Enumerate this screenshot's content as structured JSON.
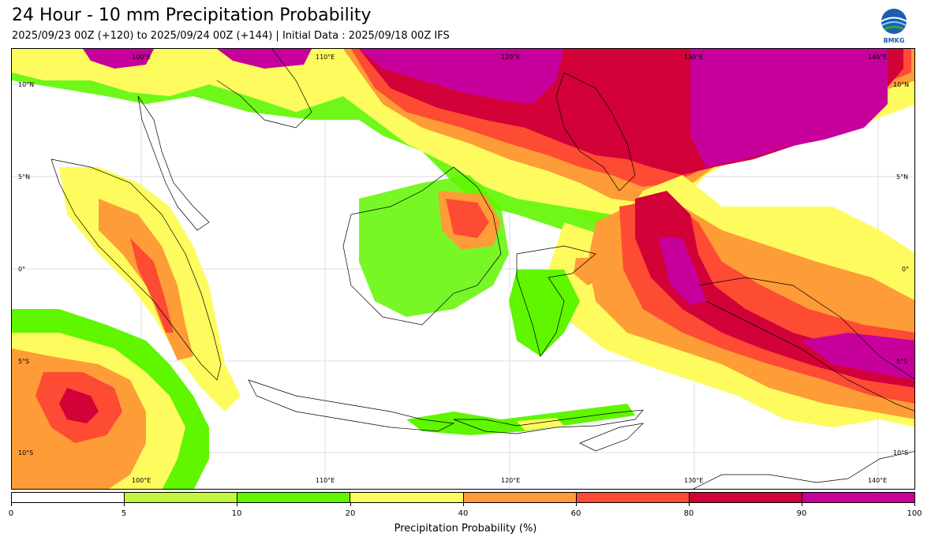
{
  "header": {
    "title": "24 Hour - 10 mm Precipitation Probability",
    "subtitle": "2025/09/23 00Z (+120) to 2025/09/24 00Z (+144) | Initial Data : 2025/09/18 00Z IFS",
    "logo_text": "BMKG"
  },
  "map": {
    "lon_labels": [
      "100°E",
      "110°E",
      "120°E",
      "130°E",
      "140°E"
    ],
    "lat_labels": [
      "10°N",
      "5°N",
      "0°",
      "5°S",
      "10°S"
    ],
    "land_color": "#ffffff",
    "coast_color": "#000000"
  },
  "legend": {
    "label": "Precipitation Probability (%)",
    "ticks": [
      "0",
      "5",
      "10",
      "20",
      "40",
      "60",
      "80",
      "90",
      "100"
    ],
    "bins": [
      {
        "range": "0-5",
        "color": "#ffffff"
      },
      {
        "range": "5-10",
        "color": "#c3f53b"
      },
      {
        "range": "10-20",
        "color": "#5ff600"
      },
      {
        "range": "20-40",
        "color": "#fefb5e"
      },
      {
        "range": "40-60",
        "color": "#fe9c37"
      },
      {
        "range": "60-80",
        "color": "#fd4b34"
      },
      {
        "range": "80-90",
        "color": "#d20138"
      },
      {
        "range": "90-100",
        "color": "#c7009c"
      }
    ]
  }
}
